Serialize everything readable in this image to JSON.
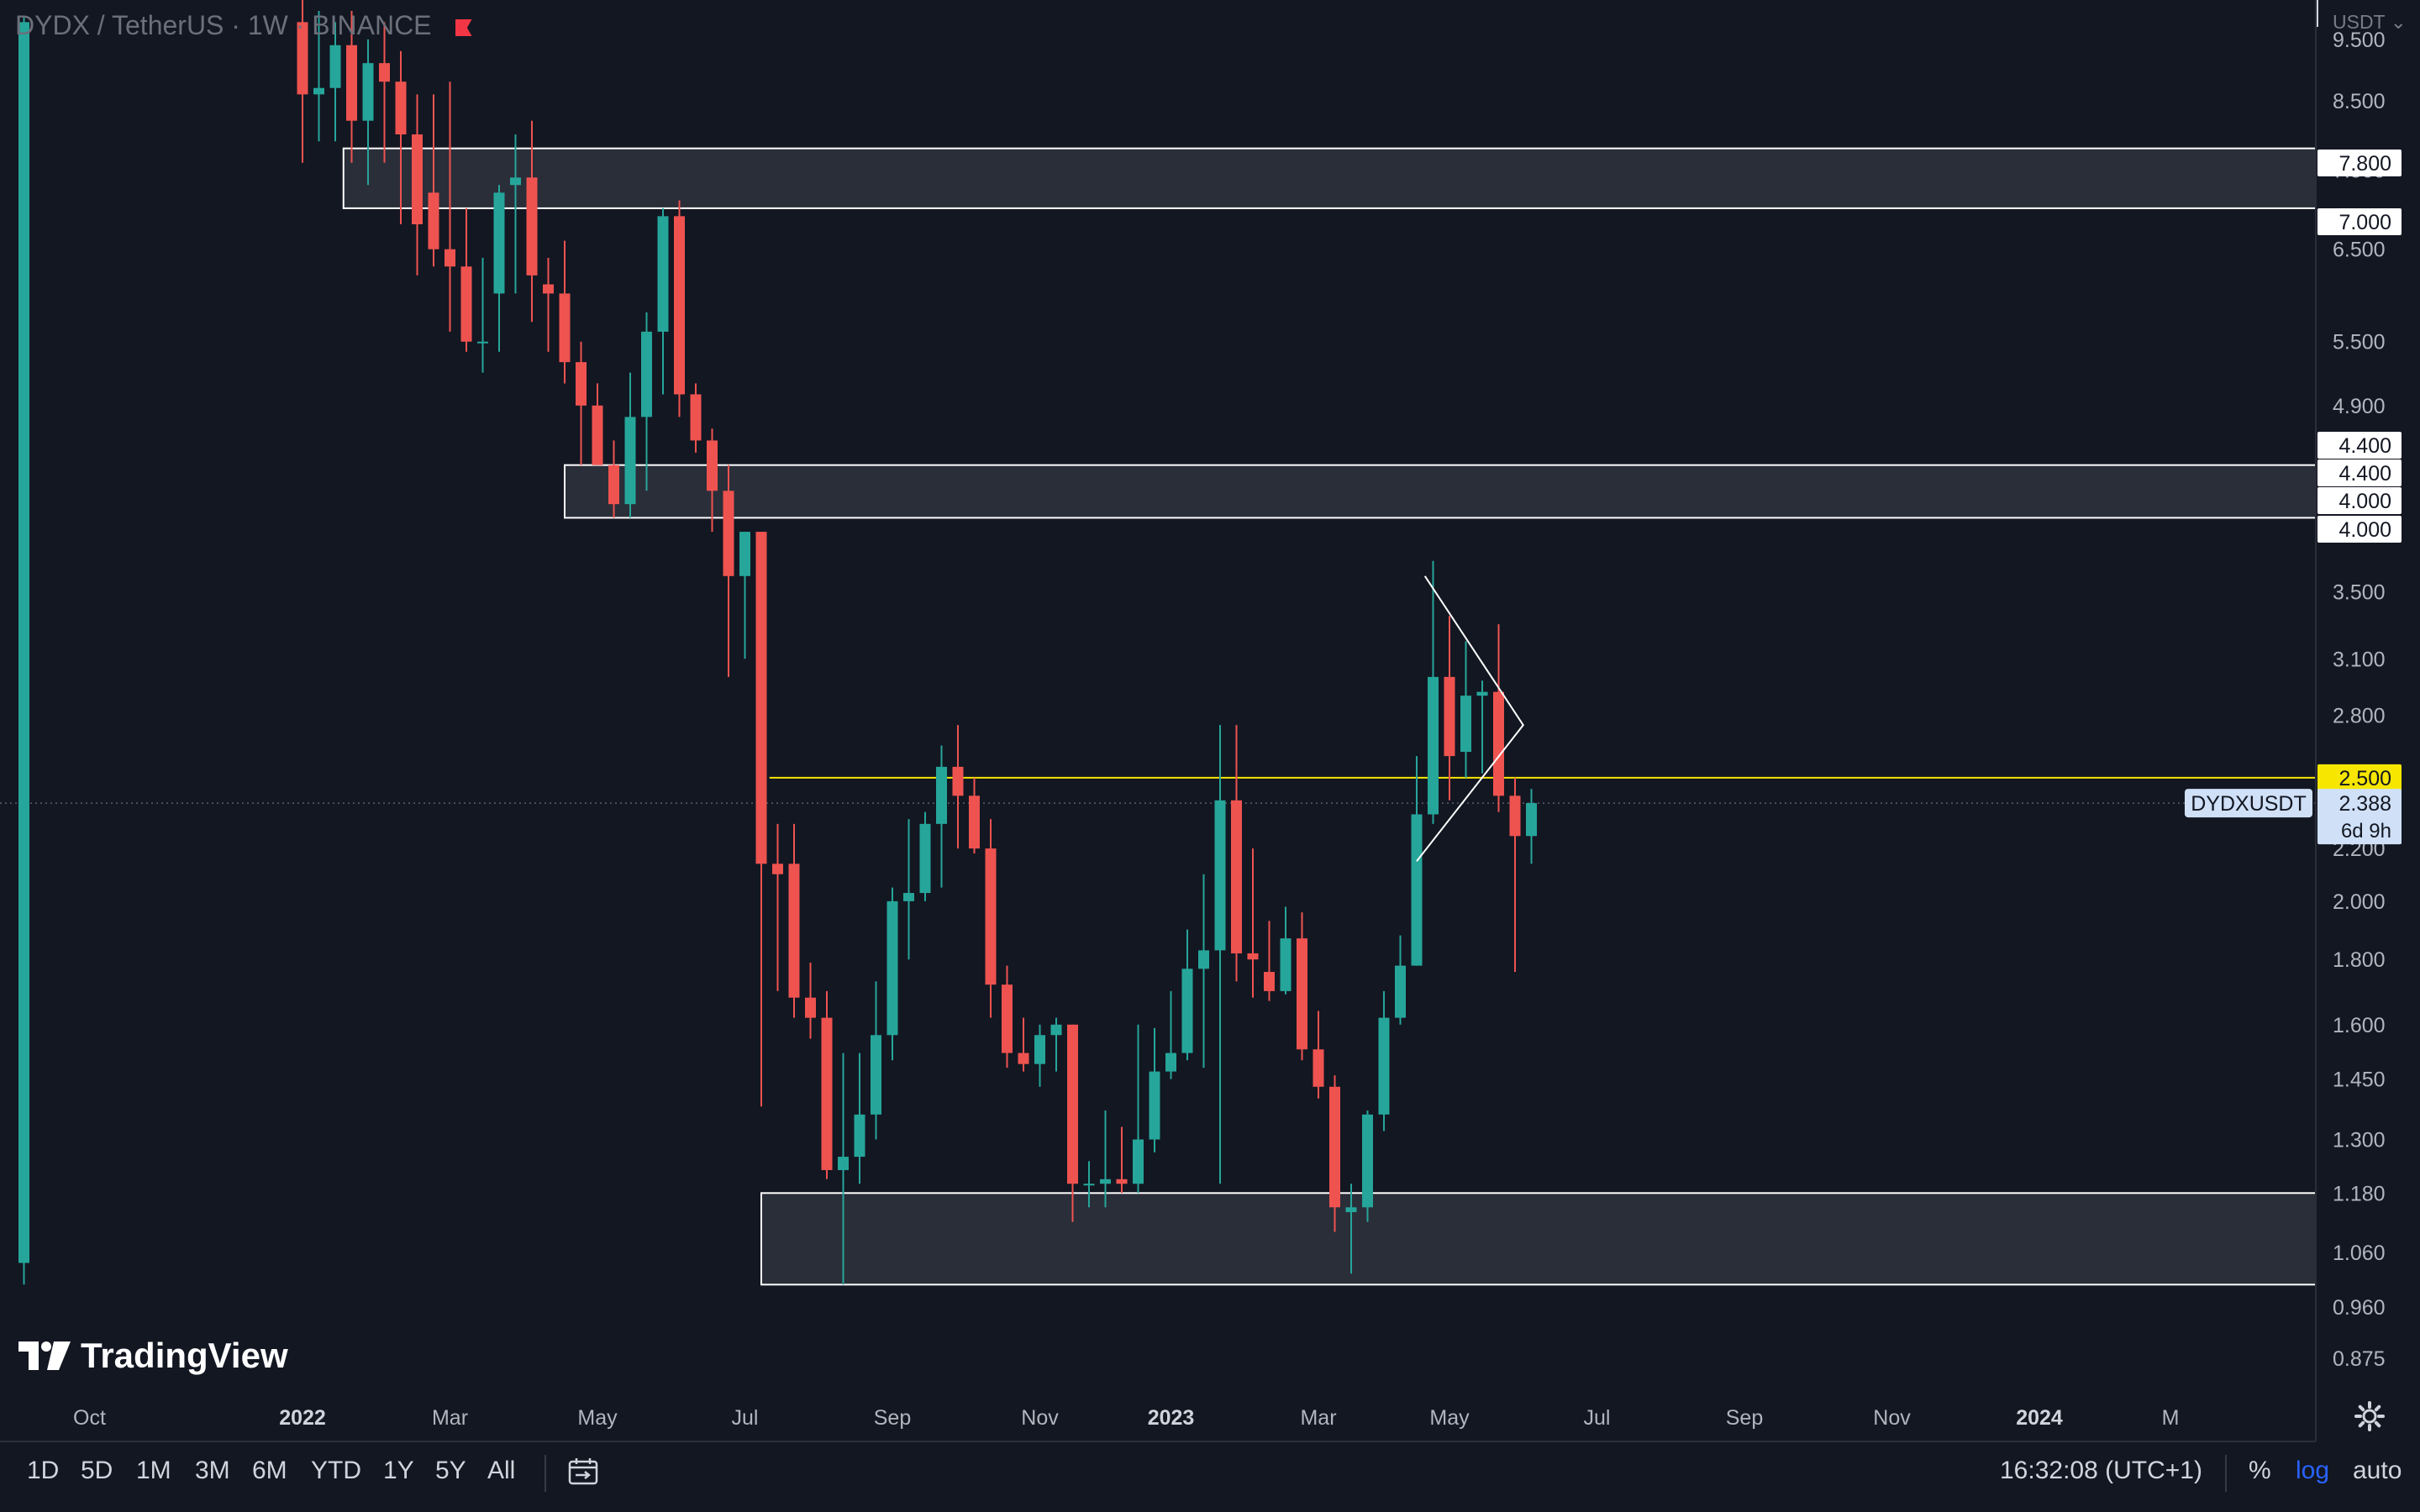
{
  "header": {
    "symbol_title": "DYDX / TetherUS · 1W · BINANCE",
    "flag_color": "#f23645"
  },
  "price_axis": {
    "currency_label": "USDT",
    "tick_labels": [
      {
        "label": "9.500",
        "value": 9.5
      },
      {
        "label": "8.500",
        "value": 8.5
      },
      {
        "label": "7.500",
        "value": 7.5
      },
      {
        "label": "6.500",
        "value": 6.5
      },
      {
        "label": "5.500",
        "value": 5.5
      },
      {
        "label": "4.900",
        "value": 4.9
      },
      {
        "label": "3.900",
        "value": 3.9
      },
      {
        "label": "3.500",
        "value": 3.5
      },
      {
        "label": "3.100",
        "value": 3.1
      },
      {
        "label": "2.800",
        "value": 2.8
      },
      {
        "label": "2.200",
        "value": 2.2
      },
      {
        "label": "2.000",
        "value": 2.0
      },
      {
        "label": "1.800",
        "value": 1.8
      },
      {
        "label": "1.600",
        "value": 1.6
      },
      {
        "label": "1.450",
        "value": 1.45
      },
      {
        "label": "1.300",
        "value": 1.3
      },
      {
        "label": "1.180",
        "value": 1.18
      },
      {
        "label": "1.060",
        "value": 1.06
      },
      {
        "label": "0.960",
        "value": 0.96
      },
      {
        "label": "0.875",
        "value": 0.875
      }
    ],
    "level_tags": [
      {
        "label": "7.800",
        "value": 7.8
      },
      {
        "label": "7.000",
        "value": 7.0
      },
      {
        "label": "4.400",
        "value": 4.4
      },
      {
        "label": "4.400",
        "value": 4.4
      },
      {
        "label": "4.000",
        "value": 4.0
      },
      {
        "label": "4.000",
        "value": 4.0
      }
    ],
    "line_tag": {
      "label": "2.500",
      "value": 2.5,
      "color": "#f7e600"
    },
    "last_price": {
      "symbol": "DYDXUSDT",
      "label": "2.388",
      "value": 2.388,
      "countdown": "6d 9h"
    }
  },
  "time_axis": {
    "labels": [
      {
        "label": "Oct",
        "week": -1,
        "bold": false
      },
      {
        "label": "2022",
        "week": 12,
        "bold": true
      },
      {
        "label": "Mar",
        "week": 21,
        "bold": false
      },
      {
        "label": "May",
        "week": 30,
        "bold": false
      },
      {
        "label": "Jul",
        "week": 39,
        "bold": false
      },
      {
        "label": "Sep",
        "week": 48,
        "bold": false
      },
      {
        "label": "Nov",
        "week": 57,
        "bold": false
      },
      {
        "label": "2023",
        "week": 65,
        "bold": true
      },
      {
        "label": "Mar",
        "week": 74,
        "bold": false
      },
      {
        "label": "May",
        "week": 82,
        "bold": false
      },
      {
        "label": "Jul",
        "week": 91,
        "bold": false
      },
      {
        "label": "Sep",
        "week": 100,
        "bold": false
      },
      {
        "label": "Nov",
        "week": 109,
        "bold": false
      },
      {
        "label": "2024",
        "week": 118,
        "bold": true
      },
      {
        "label": "M",
        "week": 126,
        "bold": false
      }
    ]
  },
  "chart_data": {
    "type": "candlestick",
    "scale": "log",
    "interval": "1W",
    "ylim": [
      0.83,
      10.2
    ],
    "up_color": "#26a69a",
    "down_color": "#ef5350",
    "candles": [
      {
        "w": -5,
        "o": 1.04,
        "h": 9.9,
        "l": 1.0,
        "c": 9.8
      },
      {
        "w": 12,
        "o": 9.8,
        "h": 10.5,
        "l": 7.6,
        "c": 8.6
      },
      {
        "w": 13,
        "o": 8.6,
        "h": 10.0,
        "l": 7.9,
        "c": 8.7
      },
      {
        "w": 14,
        "o": 8.7,
        "h": 9.8,
        "l": 7.9,
        "c": 9.4
      },
      {
        "w": 15,
        "o": 9.4,
        "h": 10.0,
        "l": 7.6,
        "c": 8.2
      },
      {
        "w": 16,
        "o": 8.2,
        "h": 9.5,
        "l": 7.3,
        "c": 9.1
      },
      {
        "w": 17,
        "o": 9.1,
        "h": 9.8,
        "l": 7.6,
        "c": 8.8
      },
      {
        "w": 18,
        "o": 8.8,
        "h": 9.3,
        "l": 6.8,
        "c": 8.0
      },
      {
        "w": 19,
        "o": 8.0,
        "h": 8.6,
        "l": 6.2,
        "c": 6.8
      },
      {
        "w": 20,
        "o": 7.2,
        "h": 8.6,
        "l": 6.3,
        "c": 6.5
      },
      {
        "w": 21,
        "o": 6.5,
        "h": 8.8,
        "l": 5.6,
        "c": 6.3
      },
      {
        "w": 22,
        "o": 6.3,
        "h": 7.0,
        "l": 5.4,
        "c": 5.5
      },
      {
        "w": 23,
        "o": 5.5,
        "h": 6.4,
        "l": 5.2,
        "c": 5.5
      },
      {
        "w": 24,
        "o": 6.0,
        "h": 7.3,
        "l": 5.4,
        "c": 7.2
      },
      {
        "w": 25,
        "o": 7.3,
        "h": 8.0,
        "l": 6.0,
        "c": 7.4
      },
      {
        "w": 26,
        "o": 7.4,
        "h": 8.2,
        "l": 5.7,
        "c": 6.2
      },
      {
        "w": 27,
        "o": 6.1,
        "h": 6.4,
        "l": 5.4,
        "c": 6.0
      },
      {
        "w": 28,
        "o": 6.0,
        "h": 6.6,
        "l": 5.1,
        "c": 5.3
      },
      {
        "w": 29,
        "o": 5.3,
        "h": 5.5,
        "l": 4.4,
        "c": 4.9
      },
      {
        "w": 30,
        "o": 4.9,
        "h": 5.1,
        "l": 4.4,
        "c": 4.4
      },
      {
        "w": 31,
        "o": 4.4,
        "h": 4.6,
        "l": 4.0,
        "c": 4.1
      },
      {
        "w": 32,
        "o": 4.1,
        "h": 5.2,
        "l": 4.0,
        "c": 4.8
      },
      {
        "w": 33,
        "o": 4.8,
        "h": 5.8,
        "l": 4.2,
        "c": 5.6
      },
      {
        "w": 34,
        "o": 5.6,
        "h": 7.0,
        "l": 5.0,
        "c": 6.9
      },
      {
        "w": 35,
        "o": 6.9,
        "h": 7.1,
        "l": 4.8,
        "c": 5.0
      },
      {
        "w": 36,
        "o": 5.0,
        "h": 5.1,
        "l": 4.5,
        "c": 4.6
      },
      {
        "w": 37,
        "o": 4.6,
        "h": 4.7,
        "l": 3.9,
        "c": 4.2
      },
      {
        "w": 38,
        "o": 4.2,
        "h": 4.4,
        "l": 3.0,
        "c": 3.6
      },
      {
        "w": 39,
        "o": 3.6,
        "h": 3.9,
        "l": 3.1,
        "c": 3.9
      },
      {
        "w": 40,
        "o": 3.9,
        "h": 3.9,
        "l": 1.38,
        "c": 2.14
      },
      {
        "w": 41,
        "o": 2.14,
        "h": 2.3,
        "l": 1.7,
        "c": 2.1
      },
      {
        "w": 42,
        "o": 2.14,
        "h": 2.3,
        "l": 1.62,
        "c": 1.68
      },
      {
        "w": 43,
        "o": 1.68,
        "h": 1.79,
        "l": 1.56,
        "c": 1.62
      },
      {
        "w": 44,
        "o": 1.62,
        "h": 1.7,
        "l": 1.21,
        "c": 1.23
      },
      {
        "w": 45,
        "o": 1.23,
        "h": 1.52,
        "l": 1.0,
        "c": 1.26
      },
      {
        "w": 46,
        "o": 1.26,
        "h": 1.52,
        "l": 1.2,
        "c": 1.36
      },
      {
        "w": 47,
        "o": 1.36,
        "h": 1.73,
        "l": 1.3,
        "c": 1.57
      },
      {
        "w": 48,
        "o": 1.57,
        "h": 2.05,
        "l": 1.5,
        "c": 2.0
      },
      {
        "w": 49,
        "o": 2.0,
        "h": 2.32,
        "l": 1.8,
        "c": 2.03
      },
      {
        "w": 50,
        "o": 2.03,
        "h": 2.35,
        "l": 2.0,
        "c": 2.3
      },
      {
        "w": 51,
        "o": 2.3,
        "h": 2.65,
        "l": 2.05,
        "c": 2.55
      },
      {
        "w": 52,
        "o": 2.55,
        "h": 2.75,
        "l": 2.2,
        "c": 2.42
      },
      {
        "w": 53,
        "o": 2.42,
        "h": 2.5,
        "l": 2.18,
        "c": 2.2
      },
      {
        "w": 54,
        "o": 2.2,
        "h": 2.32,
        "l": 1.62,
        "c": 1.72
      },
      {
        "w": 55,
        "o": 1.72,
        "h": 1.78,
        "l": 1.48,
        "c": 1.52
      },
      {
        "w": 56,
        "o": 1.52,
        "h": 1.62,
        "l": 1.47,
        "c": 1.49
      },
      {
        "w": 57,
        "o": 1.49,
        "h": 1.6,
        "l": 1.43,
        "c": 1.57
      },
      {
        "w": 58,
        "o": 1.57,
        "h": 1.62,
        "l": 1.47,
        "c": 1.6
      },
      {
        "w": 59,
        "o": 1.6,
        "h": 1.6,
        "l": 1.12,
        "c": 1.2
      },
      {
        "w": 60,
        "o": 1.2,
        "h": 1.25,
        "l": 1.15,
        "c": 1.2
      },
      {
        "w": 61,
        "o": 1.2,
        "h": 1.37,
        "l": 1.15,
        "c": 1.21
      },
      {
        "w": 62,
        "o": 1.21,
        "h": 1.33,
        "l": 1.18,
        "c": 1.2
      },
      {
        "w": 63,
        "o": 1.2,
        "h": 1.6,
        "l": 1.18,
        "c": 1.3
      },
      {
        "w": 64,
        "o": 1.3,
        "h": 1.59,
        "l": 1.27,
        "c": 1.47
      },
      {
        "w": 65,
        "o": 1.47,
        "h": 1.7,
        "l": 1.45,
        "c": 1.52
      },
      {
        "w": 66,
        "o": 1.52,
        "h": 1.9,
        "l": 1.5,
        "c": 1.77
      },
      {
        "w": 67,
        "o": 1.77,
        "h": 2.1,
        "l": 1.48,
        "c": 1.83
      },
      {
        "w": 68,
        "o": 1.83,
        "h": 2.75,
        "l": 1.2,
        "c": 2.4
      },
      {
        "w": 69,
        "o": 2.4,
        "h": 2.75,
        "l": 1.73,
        "c": 1.82
      },
      {
        "w": 70,
        "o": 1.82,
        "h": 2.2,
        "l": 1.68,
        "c": 1.8
      },
      {
        "w": 71,
        "o": 1.76,
        "h": 1.93,
        "l": 1.67,
        "c": 1.7
      },
      {
        "w": 72,
        "o": 1.7,
        "h": 1.98,
        "l": 1.69,
        "c": 1.87
      },
      {
        "w": 73,
        "o": 1.87,
        "h": 1.96,
        "l": 1.5,
        "c": 1.53
      },
      {
        "w": 74,
        "o": 1.53,
        "h": 1.64,
        "l": 1.4,
        "c": 1.43
      },
      {
        "w": 75,
        "o": 1.43,
        "h": 1.46,
        "l": 1.1,
        "c": 1.15
      },
      {
        "w": 76,
        "o": 1.14,
        "h": 1.2,
        "l": 1.02,
        "c": 1.15
      },
      {
        "w": 77,
        "o": 1.15,
        "h": 1.37,
        "l": 1.12,
        "c": 1.36
      },
      {
        "w": 78,
        "o": 1.36,
        "h": 1.7,
        "l": 1.32,
        "c": 1.62
      },
      {
        "w": 79,
        "o": 1.62,
        "h": 1.88,
        "l": 1.6,
        "c": 1.78
      },
      {
        "w": 80,
        "o": 1.78,
        "h": 2.6,
        "l": 1.78,
        "c": 2.34
      },
      {
        "w": 81,
        "o": 2.34,
        "h": 3.7,
        "l": 2.3,
        "c": 3.0
      },
      {
        "w": 82,
        "o": 3.0,
        "h": 3.35,
        "l": 2.4,
        "c": 2.6
      },
      {
        "w": 83,
        "o": 2.62,
        "h": 3.2,
        "l": 2.5,
        "c": 2.9
      },
      {
        "w": 84,
        "o": 2.9,
        "h": 2.98,
        "l": 2.52,
        "c": 2.92
      },
      {
        "w": 85,
        "o": 2.92,
        "h": 3.3,
        "l": 2.35,
        "c": 2.42
      },
      {
        "w": 86,
        "o": 2.42,
        "h": 2.5,
        "l": 1.76,
        "c": 2.25
      },
      {
        "w": 87,
        "o": 2.25,
        "h": 2.45,
        "l": 2.14,
        "c": 2.388
      }
    ],
    "zones": [
      {
        "from_week": 14.5,
        "to": "axis",
        "low": 7.0,
        "high": 7.8
      },
      {
        "from_week": 28,
        "to": "axis",
        "low": 4.0,
        "high": 4.4
      },
      {
        "from_week": 40,
        "to": "axis",
        "low": 1.0,
        "high": 1.18
      }
    ],
    "horizontal_line": {
      "from_week": 40.5,
      "value": 2.5,
      "color": "#f7e600"
    },
    "wedge": {
      "points": [
        {
          "week": 80.5,
          "value": 3.6
        },
        {
          "week": 86.5,
          "value": 2.75
        },
        {
          "week": 80,
          "value": 2.15
        }
      ]
    },
    "last_price_line": 2.388
  },
  "branding": {
    "name": "TradingView"
  },
  "bottom_toolbar": {
    "timeframes": [
      "1D",
      "5D",
      "1M",
      "3M",
      "6M",
      "YTD",
      "1Y",
      "5Y",
      "All"
    ],
    "clock": "16:32:08 (UTC+1)",
    "percent_label": "%",
    "log_label": "log",
    "auto_label": "auto"
  }
}
